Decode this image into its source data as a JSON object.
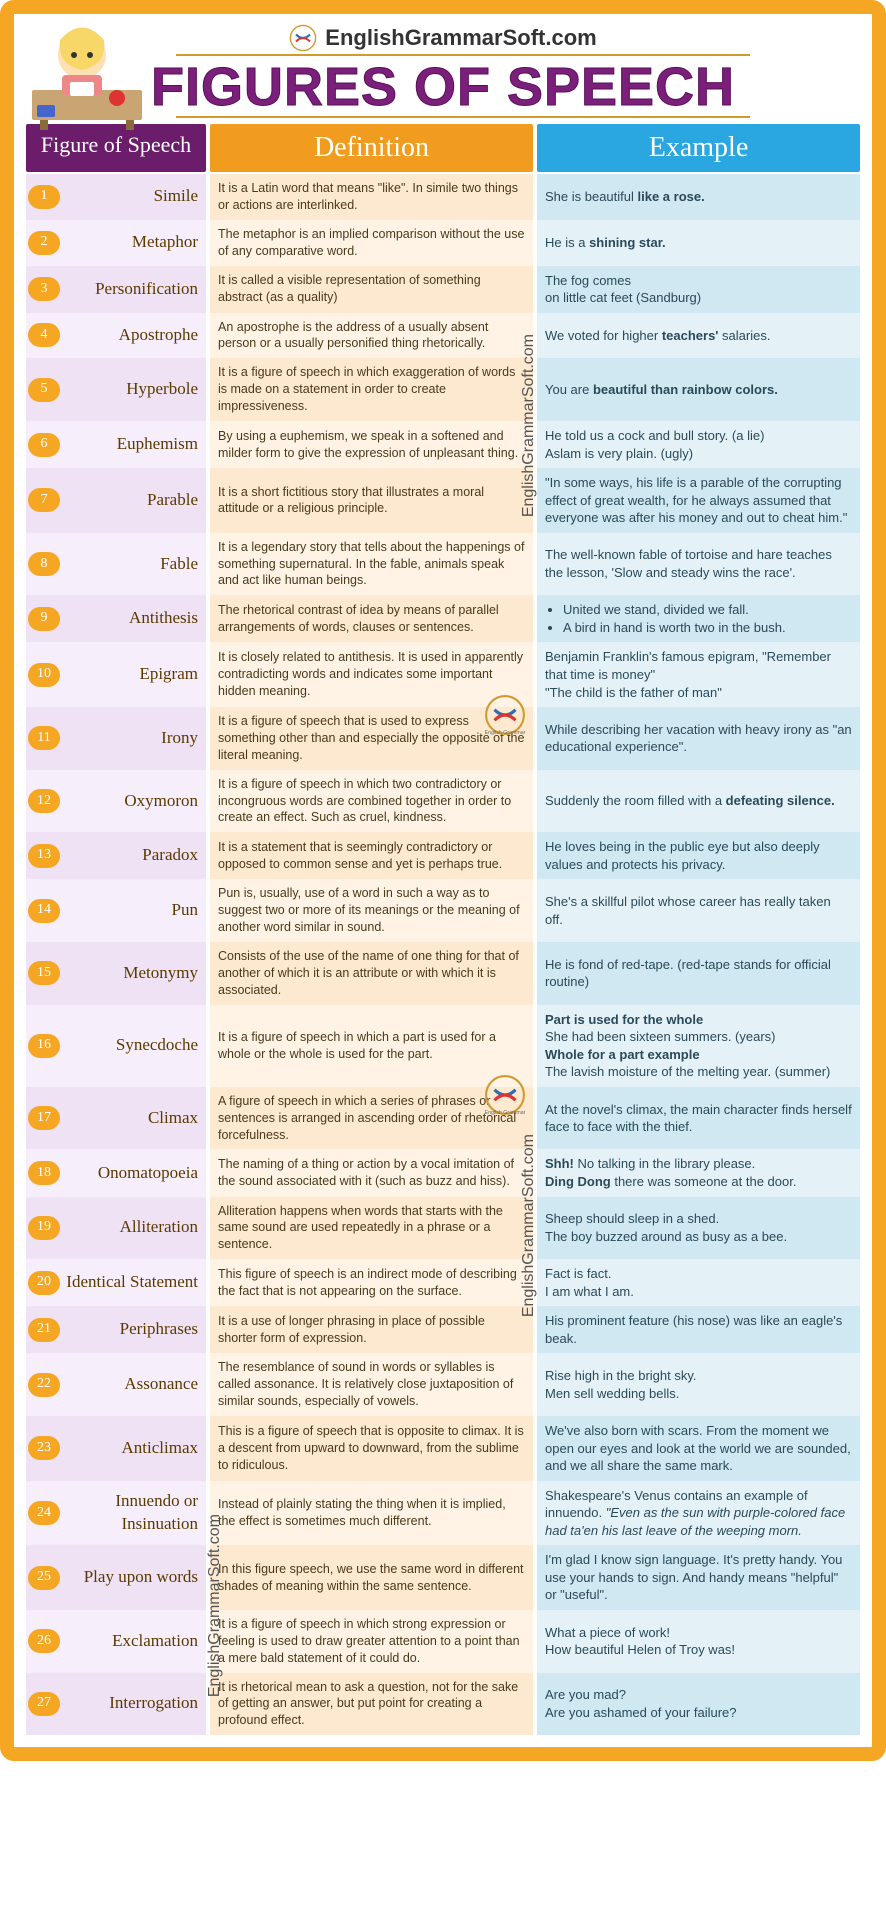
{
  "site_name": "EnglishGrammarSoft.com",
  "main_title": "FIGURES OF SPEECH",
  "columns": {
    "figure": "Figure of Speech",
    "definition": "Definition",
    "example": "Example"
  },
  "watermark": "EnglishGrammarSoft.com",
  "colors": {
    "border": "#f5a623",
    "purple": "#6b1c6b",
    "orange": "#f29c1f",
    "blue": "#2aa7e0",
    "figure_bg": "#efe2f4",
    "def_bg": "#fce9cf",
    "ex_bg": "#cfe8f2"
  },
  "rows": [
    {
      "n": "1",
      "name": "Simile",
      "def": "It is a Latin word that means \"like\". In simile two things or actions are interlinked.",
      "ex": "She is beautiful <b>like a rose.</b>"
    },
    {
      "n": "2",
      "name": "Metaphor",
      "def": "The metaphor is an implied comparison without the use of any comparative word.",
      "ex": "He is a <b>shining star.</b>"
    },
    {
      "n": "3",
      "name": "Personification",
      "def": "It is called a visible representation of something abstract (as a quality)",
      "ex": "The fog comes<br>on little cat feet (Sandburg)"
    },
    {
      "n": "4",
      "name": "Apostrophe",
      "def": "An apostrophe is the address of a usually absent person or a usually personified thing rhetorically.",
      "ex": "We voted for higher <b>teachers'</b> salaries."
    },
    {
      "n": "5",
      "name": "Hyperbole",
      "def": "It is a figure of speech in which exaggeration of words is made on a statement in order to create impressiveness.",
      "ex": "You are <b>beautiful than rainbow colors.</b>"
    },
    {
      "n": "6",
      "name": "Euphemism",
      "def": "By using a euphemism, we speak in a softened and milder form to give the expression of unpleasant thing.",
      "ex": "He told us a cock and bull story. (a lie)<br>Aslam is very plain. (ugly)"
    },
    {
      "n": "7",
      "name": "Parable",
      "def": "It is a short fictitious story that illustrates a moral attitude or a religious principle.",
      "ex": "\"In some ways, his life is a parable of the corrupting effect of great wealth, for he always assumed that everyone was after his money and out to cheat him.\""
    },
    {
      "n": "8",
      "name": "Fable",
      "def": "It is a legendary story that tells about the happenings of something supernatural. In the fable, animals speak and act like human beings.",
      "ex": "The well-known fable of tortoise and hare teaches the lesson, 'Slow and steady wins the race'."
    },
    {
      "n": "9",
      "name": "Antithesis",
      "def": "The rhetorical contrast of idea by means of parallel arrangements of words, clauses or sentences.",
      "ex": "<ul><li>United we stand, divided we fall.</li><li>A bird in hand is worth two in the bush.</li></ul>"
    },
    {
      "n": "10",
      "name": "Epigram",
      "def": "It is closely related to antithesis. It is used in apparently contradicting words and indicates some important hidden meaning.",
      "ex": "Benjamin Franklin's famous epigram, \"Remember that time is money\"<br>\"The child is the father of man\""
    },
    {
      "n": "11",
      "name": "Irony",
      "def": "It is a figure of speech that is used to express something other than and especially the opposite of the literal meaning.",
      "ex": "While describing her vacation with heavy irony as \"an educational experience\"."
    },
    {
      "n": "12",
      "name": "Oxymoron",
      "def": "It is a figure of speech in which two contradictory or incongruous words are combined together in order to create an effect. Such as cruel, kindness.",
      "ex": "Suddenly the room filled with a <b>defeating silence.</b>"
    },
    {
      "n": "13",
      "name": "Paradox",
      "def": "It is a statement that is seemingly contradictory or opposed to common sense and yet is perhaps true.",
      "ex": "He loves being in the public eye but also deeply values and protects his privacy."
    },
    {
      "n": "14",
      "name": "Pun",
      "def": "Pun is, usually, use of a word in such a way as to suggest two or more of its meanings or the meaning of another word similar in sound.",
      "ex": "She's a skillful pilot whose career has really taken off."
    },
    {
      "n": "15",
      "name": "Metonymy",
      "def": "Consists of the use of the name of one thing for that of another of which it is an attribute or with which it is associated.",
      "ex": "He is fond of red-tape. (red-tape stands for official routine)"
    },
    {
      "n": "16",
      "name": "Synecdoche",
      "def": "It is a figure of speech in which a part is used for a whole or the whole is used for the part.",
      "ex": "<b>Part is used for the whole</b><br>She had been sixteen summers. (years)<br><b>Whole for a part example</b><br>The lavish moisture of the melting year. (summer)"
    },
    {
      "n": "17",
      "name": "Climax",
      "def": "A figure of speech in which a series of phrases or sentences is arranged in ascending order of rhetorical forcefulness.",
      "ex": "At the novel's climax, the main character finds herself face to face with the thief."
    },
    {
      "n": "18",
      "name": "Onomatopoeia",
      "def": "The naming of a thing or action by a vocal imitation of the sound associated with it (such as buzz and hiss).",
      "ex": "<b>Shh!</b> No talking in the library please.<br><b>Ding Dong</b> there was someone at the door."
    },
    {
      "n": "19",
      "name": "Alliteration",
      "def": "Alliteration happens when words that starts with the same sound are used repeatedly in a phrase or a sentence.",
      "ex": "Sheep should sleep in a shed.<br>The boy buzzed around as busy as a bee."
    },
    {
      "n": "20",
      "name": "Identical Statement",
      "def": "This figure of speech is an indirect mode of describing the fact that is not appearing on the surface.",
      "ex": "Fact is fact.<br>I am what I am."
    },
    {
      "n": "21",
      "name": "Periphrases",
      "def": "It is a use of longer phrasing in place of possible shorter form of expression.",
      "ex": "His prominent feature (his nose) was like an eagle's beak."
    },
    {
      "n": "22",
      "name": "Assonance",
      "def": "The resemblance of sound in words or syllables is called assonance. It is relatively close juxtaposition of similar sounds, especially of vowels.",
      "ex": "Rise high in the bright sky.<br>Men sell wedding bells."
    },
    {
      "n": "23",
      "name": "Anticlimax",
      "def": "This is a figure of speech that is opposite to climax. It is a descent from upward to downward, from the sublime to ridiculous.",
      "ex": "We've also born with scars. From the moment we open our eyes and look at the world we are sounded, and we all share the same mark."
    },
    {
      "n": "24",
      "name": "Innuendo or Insinuation",
      "def": "Instead of plainly stating the thing when it is implied, the effect is sometimes much different.",
      "ex": "Shakespeare's Venus contains an example of innuendo. <i>\"Even as the sun with purple-colored face had ta'en his last leave of the weeping morn.</i>"
    },
    {
      "n": "25",
      "name": "Play upon words",
      "def": "In this figure speech, we use the same word in different shades of meaning within the same sentence.",
      "ex": "I'm glad I know sign language. It's pretty handy. You use your hands to sign. And handy means \"helpful\" or \"useful\"."
    },
    {
      "n": "26",
      "name": "Exclamation",
      "def": "It is a figure of speech in which strong expression or feeling is used to draw greater attention to a point than a mere bald statement of it could do.",
      "ex": "What a piece of work!<br>How beautiful Helen of Troy was!"
    },
    {
      "n": "27",
      "name": "Interrogation",
      "def": "It is rhetorical mean to ask a question, not for the sake of getting an answer, but put point for creating a profound effect.",
      "ex": "Are you mad?<br>Are you ashamed of your failure?"
    }
  ]
}
